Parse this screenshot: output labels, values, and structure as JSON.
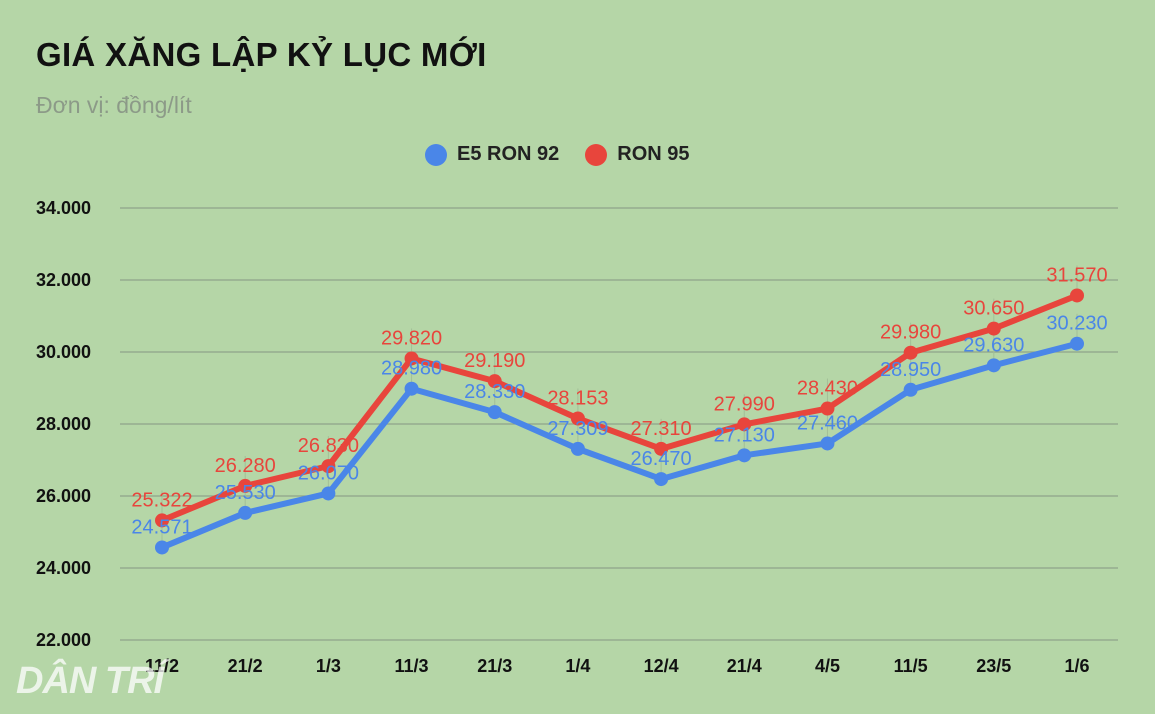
{
  "title": "GIÁ XĂNG LẬP KỶ LỤC MỚI",
  "subtitle": "Đơn vị: đồng/lít",
  "logo": "DÂN TRÍ",
  "colors": {
    "e5": "#4a86e8",
    "ron95": "#e8453c",
    "background": "#b5d6a7",
    "grid": "#8fa48a"
  },
  "chart_data": {
    "type": "line",
    "title": "GIÁ XĂNG LẬP KỶ LỤC MỚI",
    "subtitle": "Đơn vị: đồng/lít",
    "categories": [
      "11/2",
      "21/2",
      "1/3",
      "11/3",
      "21/3",
      "1/4",
      "12/4",
      "21/4",
      "4/5",
      "11/5",
      "23/5",
      "1/6"
    ],
    "ylim": [
      22000,
      34000
    ],
    "yticks": [
      22000,
      24000,
      26000,
      28000,
      30000,
      32000,
      34000
    ],
    "ytick_labels": [
      "22.000",
      "24.000",
      "26.000",
      "28.000",
      "30.000",
      "32.000",
      "34.000"
    ],
    "grid": true,
    "legend_position": "top-center",
    "series": [
      {
        "name": "E5 RON 92",
        "color": "#4a86e8",
        "values": [
          24571,
          25530,
          26070,
          28980,
          28330,
          27309,
          26470,
          27130,
          27460,
          28950,
          29630,
          30230
        ],
        "labels": [
          "24.571",
          "25.530",
          "26.070",
          "28.980",
          "28.330",
          "27.309",
          "26.470",
          "27.130",
          "27.460",
          "28.950",
          "29.630",
          "30.230"
        ]
      },
      {
        "name": "RON 95",
        "color": "#e8453c",
        "values": [
          25322,
          26280,
          26830,
          29820,
          29190,
          28153,
          27310,
          27990,
          28430,
          29980,
          30650,
          31570
        ],
        "labels": [
          "25.322",
          "26.280",
          "26.830",
          "29.820",
          "29.190",
          "28.153",
          "27.310",
          "27.990",
          "28.430",
          "29.980",
          "30.650",
          "31.570"
        ]
      }
    ]
  }
}
